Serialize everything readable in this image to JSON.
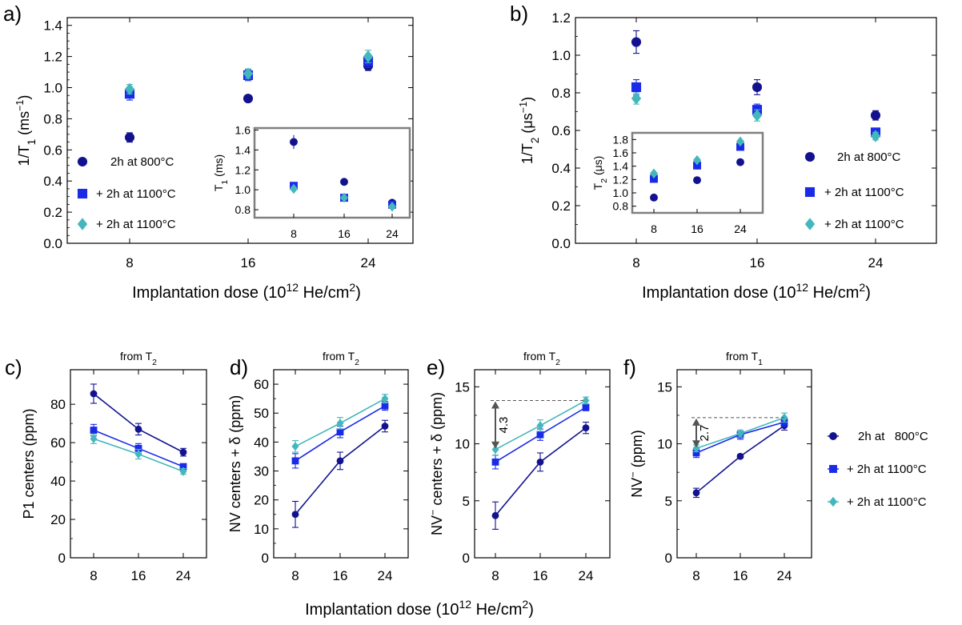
{
  "colors": {
    "series0": "#12128f",
    "series1": "#1a2be8",
    "series2": "#44b7bd",
    "inset_border": "#808080",
    "dashed": "#555555",
    "arrow": "#555555"
  },
  "chart_data": [
    {
      "id": "a",
      "type": "scatter",
      "panel_label": "a)",
      "xlabel": "Implantation dose (10¹² He/cm²)",
      "ylabel": "1/T₁ (ms⁻¹)",
      "x_ticks": [
        "8",
        "16",
        "24"
      ],
      "ylim": [
        0,
        1.45
      ],
      "y_ticks": [
        "0.0",
        "0.2",
        "0.4",
        "0.6",
        "0.8",
        "1.0",
        "1.2",
        "1.4"
      ],
      "legend_position": "left",
      "series": [
        {
          "name": "2h at 800°C",
          "marker": "circle",
          "x": [
            8,
            16,
            24
          ],
          "y": [
            0.68,
            0.93,
            1.14
          ],
          "err": [
            0.03,
            0.015,
            0.03
          ]
        },
        {
          "name": "+ 2h at 1100°C",
          "marker": "square",
          "x": [
            8,
            16,
            24
          ],
          "y": [
            0.96,
            1.08,
            1.17
          ],
          "err": [
            0.04,
            0.035,
            0.04
          ]
        },
        {
          "name": "+ 2h at 1100°C",
          "marker": "diamond",
          "x": [
            8,
            16,
            24
          ],
          "y": [
            0.99,
            1.09,
            1.2
          ],
          "err": [
            0.03,
            0.03,
            0.04
          ]
        }
      ],
      "inset": {
        "ylabel": "T₁ (ms)",
        "x_ticks": [
          "8",
          "16",
          "24"
        ],
        "ylim": [
          0.72,
          1.62
        ],
        "y_ticks": [
          "0.8",
          "1.0",
          "1.2",
          "1.4",
          "1.6"
        ],
        "series": [
          {
            "marker": "circle",
            "x": [
              8,
              16,
              24
            ],
            "y": [
              1.48,
              1.08,
              0.87
            ],
            "err": [
              0.07,
              0.02,
              0.02
            ]
          },
          {
            "marker": "square",
            "x": [
              8,
              16,
              24
            ],
            "y": [
              1.04,
              0.92,
              0.85
            ],
            "err": [
              0.03,
              0.02,
              0.02
            ]
          },
          {
            "marker": "diamond",
            "x": [
              8,
              16,
              24
            ],
            "y": [
              1.01,
              0.92,
              0.83
            ],
            "err": [
              0.02,
              0.02,
              0.02
            ]
          }
        ]
      }
    },
    {
      "id": "b",
      "type": "scatter",
      "panel_label": "b)",
      "xlabel": "Implantation dose (10¹² He/cm²)",
      "ylabel": "1/T₂ (μs⁻¹)",
      "x_ticks": [
        "8",
        "16",
        "24"
      ],
      "ylim": [
        0,
        1.2
      ],
      "y_ticks": [
        "0.0",
        "0.2",
        "0.4",
        "0.6",
        "0.8",
        "1.0",
        "1.2"
      ],
      "legend_position": "right",
      "series": [
        {
          "name": "2h at 800°C",
          "marker": "circle",
          "x": [
            8,
            16,
            24
          ],
          "y": [
            1.07,
            0.83,
            0.68
          ],
          "err": [
            0.06,
            0.04,
            0.025
          ]
        },
        {
          "name": "+ 2h at 1100°C",
          "marker": "square",
          "x": [
            8,
            16,
            24
          ],
          "y": [
            0.83,
            0.71,
            0.59
          ],
          "err": [
            0.04,
            0.03,
            0.02
          ]
        },
        {
          "name": "+ 2h at 1100°C",
          "marker": "diamond",
          "x": [
            8,
            16,
            24
          ],
          "y": [
            0.77,
            0.68,
            0.57
          ],
          "err": [
            0.03,
            0.03,
            0.02
          ]
        }
      ],
      "inset": {
        "ylabel": "T₂ (μs)",
        "x_ticks": [
          "8",
          "16",
          "24"
        ],
        "ylim": [
          0.7,
          1.9
        ],
        "y_ticks": [
          "0.8",
          "1.0",
          "1.2",
          "1.4",
          "1.6",
          "1.8"
        ],
        "series": [
          {
            "marker": "circle",
            "x": [
              8,
              16,
              24
            ],
            "y": [
              0.93,
              1.19,
              1.46
            ],
            "err": [
              0.05,
              0.05,
              0.05
            ]
          },
          {
            "marker": "square",
            "x": [
              8,
              16,
              24
            ],
            "y": [
              1.21,
              1.41,
              1.69
            ],
            "err": [
              0.06,
              0.06,
              0.06
            ]
          },
          {
            "marker": "diamond",
            "x": [
              8,
              16,
              24
            ],
            "y": [
              1.29,
              1.49,
              1.77
            ],
            "err": [
              0.05,
              0.06,
              0.06
            ]
          }
        ]
      }
    },
    {
      "id": "c",
      "type": "line",
      "panel_label": "c)",
      "subtitle": "from T₂",
      "ylabel": "P1 centers (ppm)",
      "x_ticks": [
        "8",
        "16",
        "24"
      ],
      "ylim": [
        0,
        98
      ],
      "y_ticks": [
        "0",
        "20",
        "40",
        "60",
        "80"
      ],
      "series": [
        {
          "marker": "circle",
          "x": [
            8,
            16,
            24
          ],
          "y": [
            85.5,
            67,
            55
          ],
          "err": [
            5,
            3,
            2
          ]
        },
        {
          "marker": "square",
          "x": [
            8,
            16,
            24
          ],
          "y": [
            66.5,
            57,
            47.5
          ],
          "err": [
            3,
            2.5,
            1.5
          ]
        },
        {
          "marker": "diamond",
          "x": [
            8,
            16,
            24
          ],
          "y": [
            62,
            54,
            45
          ],
          "err": [
            2.5,
            2.5,
            1.5
          ]
        }
      ]
    },
    {
      "id": "d",
      "type": "line",
      "panel_label": "d)",
      "subtitle": "from T₂",
      "ylabel": "NV centers + δ (ppm)",
      "x_ticks": [
        "8",
        "16",
        "24"
      ],
      "ylim": [
        0,
        65
      ],
      "y_ticks": [
        "0",
        "10",
        "20",
        "30",
        "40",
        "50",
        "60"
      ],
      "series": [
        {
          "marker": "circle",
          "x": [
            8,
            16,
            24
          ],
          "y": [
            15,
            33.5,
            45.5
          ],
          "err": [
            4.5,
            3,
            2
          ]
        },
        {
          "marker": "square",
          "x": [
            8,
            16,
            24
          ],
          "y": [
            33.5,
            43.5,
            52.5
          ],
          "err": [
            2.5,
            2,
            1.5
          ]
        },
        {
          "marker": "diamond",
          "x": [
            8,
            16,
            24
          ],
          "y": [
            38.5,
            46.5,
            55
          ],
          "err": [
            2,
            2,
            1.5
          ]
        }
      ]
    },
    {
      "id": "e",
      "type": "line",
      "panel_label": "e)",
      "subtitle": "from T₂",
      "ylabel": "NV⁻ centers + δ (ppm)",
      "x_ticks": [
        "8",
        "16",
        "24"
      ],
      "ylim": [
        0,
        16.5
      ],
      "y_ticks": [
        "0",
        "5",
        "10",
        "15"
      ],
      "annotation": "4.3",
      "series": [
        {
          "marker": "circle",
          "x": [
            8,
            16,
            24
          ],
          "y": [
            3.7,
            8.4,
            11.4
          ],
          "err": [
            1.2,
            0.8,
            0.5
          ]
        },
        {
          "marker": "square",
          "x": [
            8,
            16,
            24
          ],
          "y": [
            8.4,
            10.8,
            13.2
          ],
          "err": [
            0.6,
            0.5,
            0.3
          ]
        },
        {
          "marker": "diamond",
          "x": [
            8,
            16,
            24
          ],
          "y": [
            9.5,
            11.6,
            13.8
          ],
          "err": [
            0.5,
            0.5,
            0.3
          ]
        }
      ]
    },
    {
      "id": "f",
      "type": "line",
      "panel_label": "f)",
      "subtitle": "from T₁",
      "ylabel": "NV⁻ (ppm)",
      "x_ticks": [
        "8",
        "16",
        "24"
      ],
      "ylim": [
        0,
        16.5
      ],
      "y_ticks": [
        "0",
        "5",
        "10",
        "15"
      ],
      "annotation": "2.7",
      "legend_position": "right",
      "series": [
        {
          "name": "2h at   800°C",
          "marker": "circle",
          "x": [
            8,
            16,
            24
          ],
          "y": [
            5.7,
            8.9,
            11.6
          ],
          "err": [
            0.4,
            0.15,
            0.4
          ]
        },
        {
          "name": "+ 2h at 1100°C",
          "marker": "square",
          "x": [
            8,
            16,
            24
          ],
          "y": [
            9.2,
            10.8,
            11.9
          ],
          "err": [
            0.4,
            0.4,
            0.4
          ]
        },
        {
          "name": "+ 2h at 1100°C",
          "marker": "diamond",
          "x": [
            8,
            16,
            24
          ],
          "y": [
            9.6,
            10.9,
            12.3
          ],
          "err": [
            0.3,
            0.3,
            0.4
          ]
        }
      ]
    }
  ],
  "shared_xlabel": "Implantation dose (10¹² He/cm²)"
}
